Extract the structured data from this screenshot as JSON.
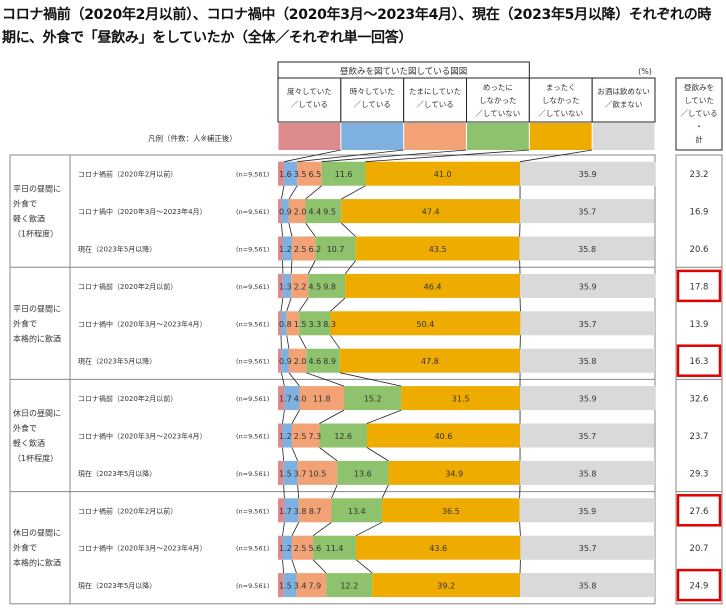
{
  "chart_data": {
    "type": "bar",
    "orientation": "horizontal-stacked-100",
    "title": "コロナ禍前（2020年2月以前）、コロナ禍中（2020年3月～2023年4月）、現在（2023年5月以降）それぞれの時期に、外食で「昼飲み」をしていたか（全体／それぞれ単一回答）",
    "unit": "(%)",
    "legend_prefix": "凡例（件数：人※補正後）",
    "legend_group_label": "昼飲みを図ていた図している図図",
    "series": [
      {
        "name": "度々していた／している",
        "color": "#dd8b8d"
      },
      {
        "name": "時々していた／している",
        "color": "#7eb0e0"
      },
      {
        "name": "たまにしていた／している",
        "color": "#f2a274"
      },
      {
        "name": "めったにしなかった／していない",
        "color": "#8fc26c"
      },
      {
        "name": "まったくしなかった／していない",
        "color": "#eeab00"
      },
      {
        "name": "お酒は飲めない／飲まない",
        "color": "#d9d9d9"
      }
    ],
    "total_header": "昼飲みをしていた／している・計",
    "highlight_color": "#e00000",
    "groups": [
      {
        "label": [
          "平日の昼間に",
          "外食で",
          "軽く飲酒",
          "（1杯程度）"
        ],
        "rows": [
          {
            "period": "コロナ禍前（2020年2月以前）",
            "n": "(n=9,561)",
            "values": [
              1.6,
              3.5,
              6.5,
              11.6,
              41.0,
              35.9
            ],
            "total": 23.2,
            "highlight": false
          },
          {
            "period": "コロナ禍中（2020年3月～2023年4月）",
            "n": "(n=9,561)",
            "values": [
              0.9,
              2.0,
              4.4,
              9.5,
              47.4,
              35.7
            ],
            "total": 16.9,
            "highlight": false
          },
          {
            "period": "現在（2023年5月以降）",
            "n": "(n=9,561)",
            "values": [
              1.2,
              2.5,
              6.2,
              10.7,
              43.5,
              35.8
            ],
            "total": 20.6,
            "highlight": false
          }
        ]
      },
      {
        "label": [
          "平日の昼間に",
          "外食で",
          "本格的に飲酒"
        ],
        "rows": [
          {
            "period": "コロナ禍前（2020年2月以前）",
            "n": "(n=9,561)",
            "values": [
              1.3,
              2.2,
              4.5,
              9.8,
              46.4,
              35.9
            ],
            "total": 17.8,
            "highlight": true
          },
          {
            "period": "コロナ禍中（2020年3月～2023年4月）",
            "n": "(n=9,561)",
            "values": [
              0.8,
              1.5,
              3.3,
              8.3,
              50.4,
              35.7
            ],
            "total": 13.9,
            "highlight": false
          },
          {
            "period": "現在（2023年5月以降）",
            "n": "(n=9,561)",
            "values": [
              0.9,
              2.0,
              4.6,
              8.9,
              47.8,
              35.8
            ],
            "total": 16.3,
            "highlight": true
          }
        ]
      },
      {
        "label": [
          "休日の昼間に",
          "外食で",
          "軽く飲酒",
          "（1杯程度）"
        ],
        "rows": [
          {
            "period": "コロナ禍前（2020年2月以前）",
            "n": "(n=9,561)",
            "values": [
              1.7,
              4.0,
              11.8,
              15.2,
              31.5,
              35.9
            ],
            "total": 32.6,
            "highlight": false
          },
          {
            "period": "コロナ禍中（2020年3月～2023年4月）",
            "n": "(n=9,561)",
            "values": [
              1.2,
              2.5,
              7.3,
              12.6,
              40.6,
              35.7
            ],
            "total": 23.7,
            "highlight": false
          },
          {
            "period": "現在（2023年5月以降）",
            "n": "(n=9,561)",
            "values": [
              1.5,
              3.7,
              10.5,
              13.6,
              34.9,
              35.8
            ],
            "total": 29.3,
            "highlight": false
          }
        ]
      },
      {
        "label": [
          "休日の昼間に",
          "外食で",
          "本格的に飲酒"
        ],
        "rows": [
          {
            "period": "コロナ禍前（2020年2月以前）",
            "n": "(n=9,561)",
            "values": [
              1.7,
              3.8,
              8.7,
              13.4,
              36.5,
              35.9
            ],
            "total": 27.6,
            "highlight": true
          },
          {
            "period": "コロナ禍中（2020年3月～2023年4月）",
            "n": "(n=9,561)",
            "values": [
              1.2,
              2.5,
              5.6,
              11.4,
              43.6,
              35.7
            ],
            "total": 20.7,
            "highlight": false
          },
          {
            "period": "現在（2023年5月以降）",
            "n": "(n=9,561)",
            "values": [
              1.5,
              3.4,
              7.9,
              12.2,
              39.2,
              35.8
            ],
            "total": 24.9,
            "highlight": true
          }
        ]
      }
    ]
  }
}
